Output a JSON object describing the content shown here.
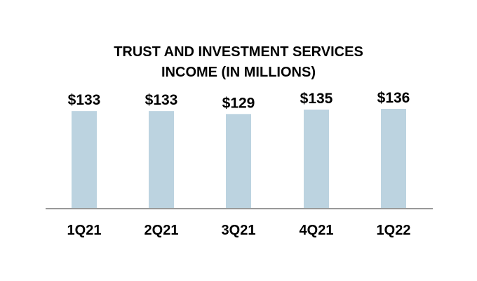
{
  "chart_data": {
    "type": "bar",
    "title_lines": [
      "TRUST AND INVESTMENT SERVICES",
      "INCOME (IN MILLIONS)"
    ],
    "categories": [
      "1Q21",
      "2Q21",
      "3Q21",
      "4Q21",
      "1Q22"
    ],
    "values": [
      133,
      133,
      129,
      135,
      136
    ],
    "value_labels": [
      "$133",
      "$133",
      "$129",
      "$135",
      "$136"
    ],
    "xlabel": "",
    "ylabel": "",
    "ylim": [
      0,
      136
    ],
    "grid": false,
    "legend": "none",
    "bar_color": "#bcd3e0",
    "axis_color": "#999999"
  }
}
